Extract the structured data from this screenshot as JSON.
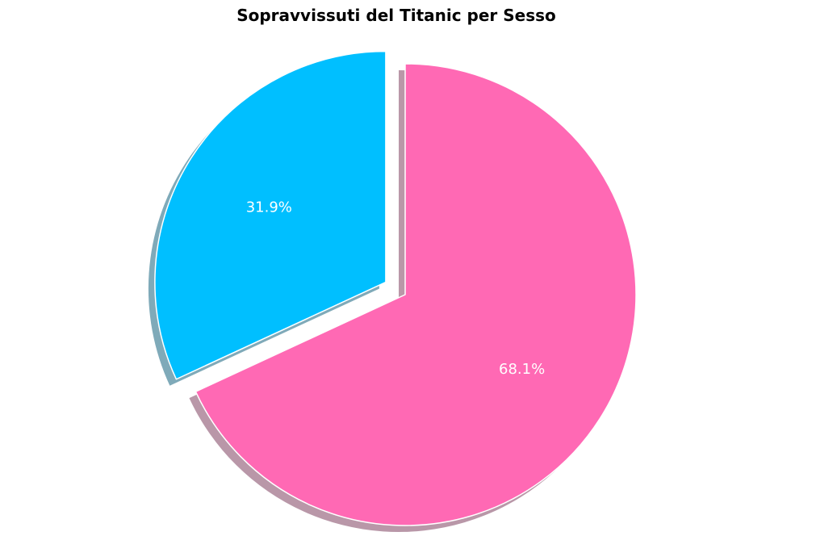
{
  "chart_data": {
    "type": "pie",
    "title": "Sopravvissuti del Titanic per Sesso",
    "slices": [
      {
        "value": 31.9,
        "label": "31.9%",
        "color": "#00BFFF",
        "exploded": true
      },
      {
        "value": 68.1,
        "label": "68.1%",
        "color": "#FF69B4",
        "exploded": false
      }
    ],
    "start_angle_deg": 90,
    "direction": "counterclockwise",
    "shadow": true,
    "legend": "none"
  }
}
